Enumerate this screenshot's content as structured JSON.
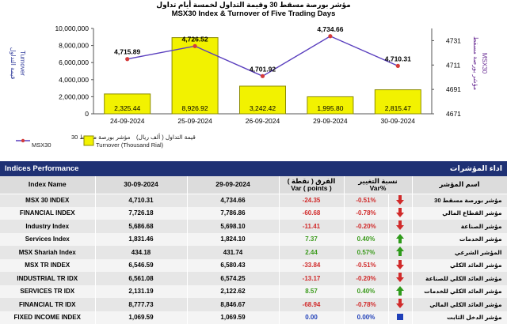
{
  "chart_data": {
    "type": "bar",
    "title_ar": "مؤشر بورصة مسقط 30 وقيمة التداول لخمسة أيام تداول",
    "title": "MSX30 Index & Turnover of Five Trading Days",
    "categories": [
      "24-09-2024",
      "25-09-2024",
      "26-09-2024",
      "29-09-2024",
      "30-09-2024"
    ],
    "series": [
      {
        "name": "Turnover (Thousand Rial)",
        "name_ar": "قيمة التداول ( ألف ريال)",
        "type": "bar",
        "axis": "left",
        "values": [
          2325.44,
          8926.92,
          3242.42,
          1995.8,
          2815.47
        ],
        "labels": [
          "2,325.44",
          "8,926.92",
          "3,242.42",
          "1,995.80",
          "2,815.47"
        ]
      },
      {
        "name": "MSX30",
        "name_ar": "مؤشر بورصة مسقط 30",
        "type": "line",
        "axis": "right",
        "values": [
          4715.89,
          4726.52,
          4701.92,
          4734.66,
          4710.31
        ],
        "labels": [
          "4,715.89",
          "4,726.52",
          "4,701.92",
          "4,734.66",
          "4,710.31"
        ]
      }
    ],
    "ylim_left": [
      0,
      10000000
    ],
    "yticks_left": [
      "10,000,000",
      "8,000,000",
      "6,000,000",
      "4,000,000",
      "2,000,000",
      "0"
    ],
    "ylabel_left": "Turnover",
    "ylabel_left_ar": "قيمة التداول",
    "ylim_right": [
      4671,
      4741
    ],
    "yticks_right": [
      "4731",
      "4711",
      "4691",
      "4671"
    ],
    "ylabel_right": "MSX30",
    "ylabel_right_ar": "مؤشر بورصة مسقط",
    "grid": false,
    "legend": "bottom-left",
    "colors": {
      "bar": "#f2f200",
      "bar_edge": "#8c8c00",
      "line": "#5a3fbe",
      "marker": "#d43b3b"
    }
  },
  "panel": {
    "title": "Indices Performance",
    "title_ar": "اداء المؤشرات"
  },
  "table": {
    "headers": {
      "index_name": "Index Name",
      "date1": "30-09-2024",
      "date2": "29-09-2024",
      "var_ar": "الفرق ( نقطة )",
      "var": "Var ( points )",
      "varpct_ar": "نسبة التغيير",
      "varpct": "Var%",
      "name_ar": "اسم المؤشر"
    },
    "rows": [
      {
        "name": "MSX 30 INDEX",
        "v1": "4,710.31",
        "v2": "4,734.66",
        "var": "-24.35",
        "pct": "-0.51%",
        "dir": "down",
        "name_ar": "مؤشر بورصة مسقط 30"
      },
      {
        "name": "FINANCIAL INDEX",
        "v1": "7,726.18",
        "v2": "7,786.86",
        "var": "-60.68",
        "pct": "-0.78%",
        "dir": "down",
        "name_ar": "مؤشر القطاع المالي"
      },
      {
        "name": "Industry Index",
        "v1": "5,686.68",
        "v2": "5,698.10",
        "var": "-11.41",
        "pct": "-0.20%",
        "dir": "down",
        "name_ar": "مؤشر الصناعة"
      },
      {
        "name": "Services Index",
        "v1": "1,831.46",
        "v2": "1,824.10",
        "var": "7.37",
        "pct": "0.40%",
        "dir": "up",
        "name_ar": "مؤشر الخدمات"
      },
      {
        "name": "MSX Shariah Index",
        "v1": "434.18",
        "v2": "431.74",
        "var": "2.44",
        "pct": "0.57%",
        "dir": "up",
        "name_ar": "المؤشر الشرعي"
      },
      {
        "name": "MSX TR INDEX",
        "v1": "6,546.59",
        "v2": "6,580.43",
        "var": "-33.84",
        "pct": "-0.51%",
        "dir": "down",
        "name_ar": "مؤشر العائد الكلي"
      },
      {
        "name": "INDUSTRIAL TR IDX",
        "v1": "6,561.08",
        "v2": "6,574.25",
        "var": "-13.17",
        "pct": "-0.20%",
        "dir": "down",
        "name_ar": "مؤشر العائد الكلي للصناعة"
      },
      {
        "name": "SERVICES TR IDX",
        "v1": "2,131.19",
        "v2": "2,122.62",
        "var": "8.57",
        "pct": "0.40%",
        "dir": "up",
        "name_ar": "مؤشر العائد الكلي للخدمات"
      },
      {
        "name": "FINANCIAL TR IDX",
        "v1": "8,777.73",
        "v2": "8,846.67",
        "var": "-68.94",
        "pct": "-0.78%",
        "dir": "down",
        "name_ar": "مؤشر العائد الكلي المالي"
      },
      {
        "name": "FIXED INCOME INDEX",
        "v1": "1,069.59",
        "v2": "1,069.59",
        "var": "0.00",
        "pct": "0.00%",
        "dir": "flat",
        "name_ar": "مؤشر الدخل الثابت"
      }
    ]
  },
  "icons": {
    "down": "red-down-arrow-icon",
    "up": "green-up-arrow-icon",
    "flat": "blue-bar-icon"
  }
}
